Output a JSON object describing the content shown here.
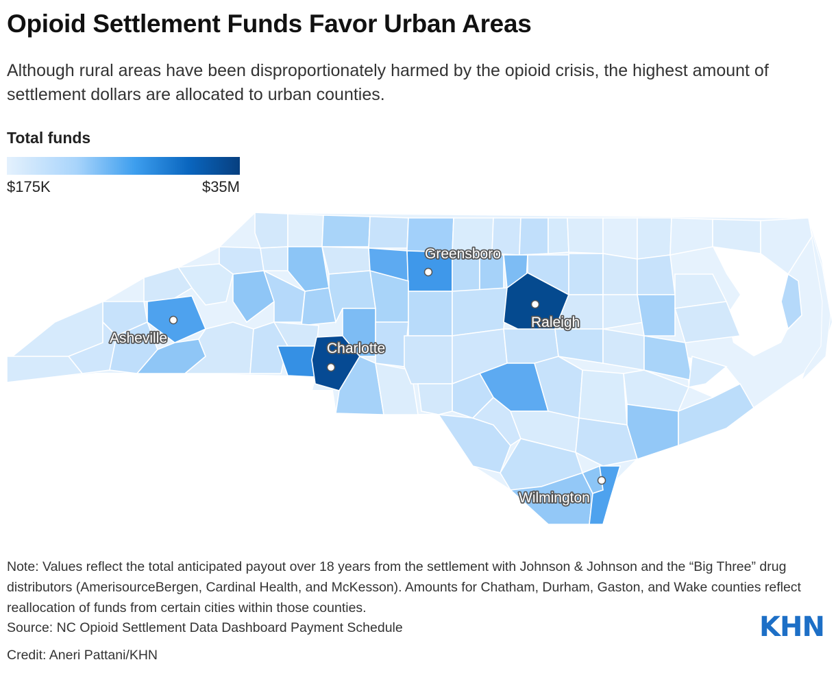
{
  "title": "Opioid Settlement Funds Favor Urban Areas",
  "subtitle": "Although rural areas have been disproportionately harmed by the opioid crisis, the highest amount of settlement dollars are allocated to urban counties.",
  "legend": {
    "title": "Total funds",
    "min_label": "$175K",
    "max_label": "$35M",
    "colors": [
      "#e4f1fd",
      "#a8d4fb",
      "#3d9eee",
      "#0a66bf",
      "#073f7f"
    ]
  },
  "cities": [
    {
      "name": "Greensboro",
      "funds_level": "high"
    },
    {
      "name": "Raleigh",
      "funds_level": "highest"
    },
    {
      "name": "Asheville",
      "funds_level": "high"
    },
    {
      "name": "Charlotte",
      "funds_level": "highest"
    },
    {
      "name": "Wilmington",
      "funds_level": "high"
    }
  ],
  "note": "Note: Values reflect the total anticipated payout over 18 years from the settlement with Johnson & Johnson and the “Big Three” drug distributors (AmerisourceBergen, Cardinal Health, and McKesson). Amounts for Chatham, Durham, Gaston, and Wake counties reflect reallocation of funds from certain cities within those counties.",
  "source": "Source: NC Opioid Settlement Data Dashboard Payment Schedule",
  "credit": "Credit: Aneri Pattani/KHN",
  "logo": "KHN"
}
